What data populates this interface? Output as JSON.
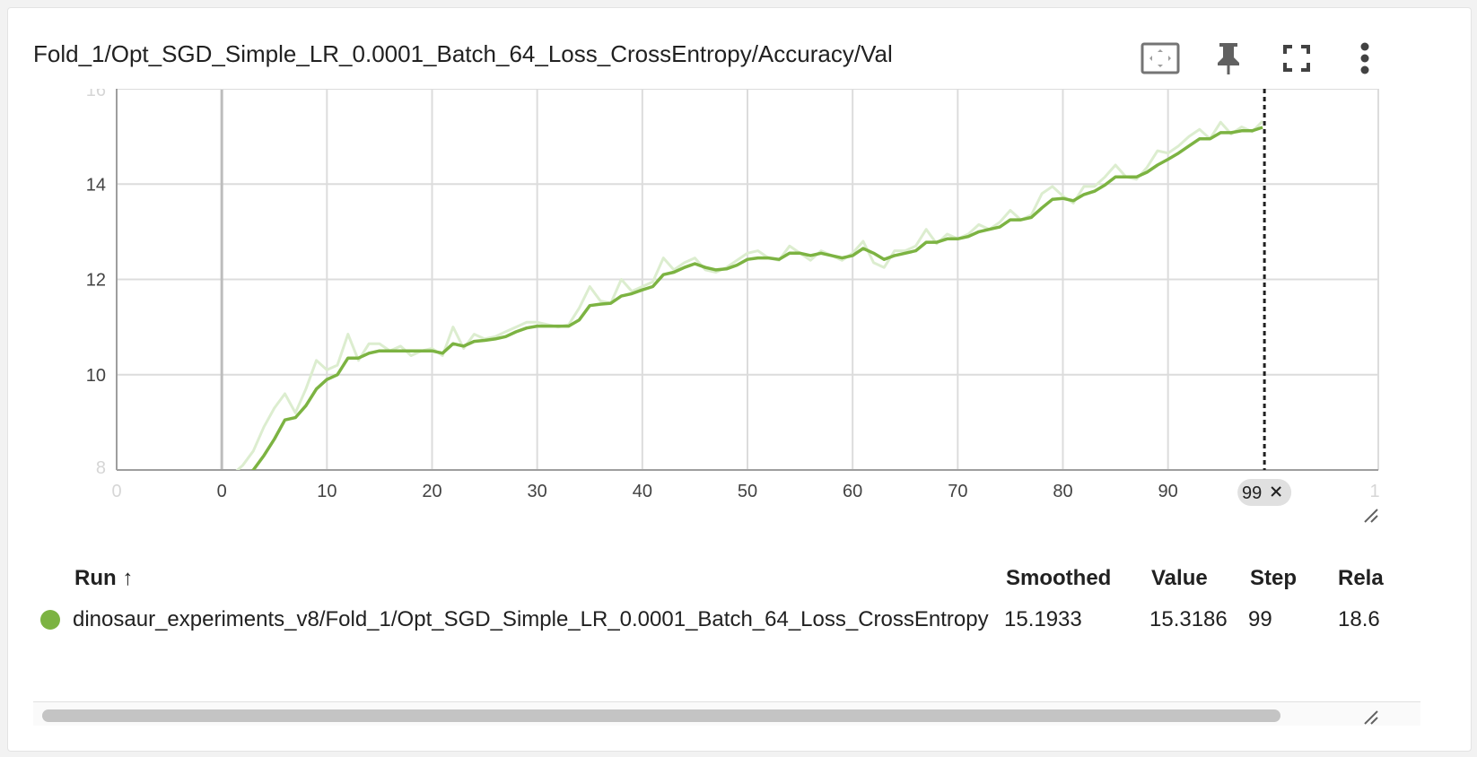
{
  "card": {
    "title": "Fold_1/Opt_SGD_Simple_LR_0.0001_Batch_64_Loss_CrossEntropy/Accuracy/Val",
    "toolbar": [
      {
        "name": "fit-domain-icon"
      },
      {
        "name": "pin-icon"
      },
      {
        "name": "fullscreen-icon"
      },
      {
        "name": "more-vertical-icon"
      }
    ]
  },
  "chart_data": {
    "type": "line",
    "title": "",
    "xlabel": "",
    "ylabel": "",
    "xlim": [
      -10,
      110
    ],
    "ylim": [
      8,
      16
    ],
    "x_ticks": [
      0,
      10,
      20,
      30,
      40,
      50,
      60,
      70,
      80,
      90
    ],
    "x_tick_labels": [
      "0",
      "10",
      "20",
      "30",
      "40",
      "50",
      "60",
      "70",
      "80",
      "90"
    ],
    "x_edge_labels": [
      "0",
      "1"
    ],
    "y_ticks": [
      10,
      12,
      14
    ],
    "y_tick_labels": [
      "10",
      "12",
      "14"
    ],
    "y_edge_labels": [
      "16",
      "8"
    ],
    "grid": true,
    "cursor": {
      "step": 99,
      "label": "99"
    },
    "series": [
      {
        "role": "raw",
        "color": "#dcedcf",
        "x": [
          0,
          1,
          2,
          3,
          4,
          5,
          6,
          7,
          8,
          9,
          10,
          11,
          12,
          13,
          14,
          15,
          16,
          17,
          18,
          19,
          20,
          21,
          22,
          23,
          24,
          25,
          26,
          27,
          28,
          29,
          30,
          31,
          32,
          33,
          34,
          35,
          36,
          37,
          38,
          39,
          40,
          41,
          42,
          43,
          44,
          45,
          46,
          47,
          48,
          49,
          50,
          51,
          52,
          53,
          54,
          55,
          56,
          57,
          58,
          59,
          60,
          61,
          62,
          63,
          64,
          65,
          66,
          67,
          68,
          69,
          70,
          71,
          72,
          73,
          74,
          75,
          76,
          77,
          78,
          79,
          80,
          81,
          82,
          83,
          84,
          85,
          86,
          87,
          88,
          89,
          90,
          91,
          92,
          93,
          94,
          95,
          96,
          97,
          98,
          99
        ],
        "y": [
          7.6,
          7.9,
          8.1,
          8.4,
          8.9,
          9.3,
          9.6,
          9.2,
          9.7,
          10.3,
          10.1,
          10.2,
          10.85,
          10.3,
          10.65,
          10.65,
          10.5,
          10.6,
          10.4,
          10.5,
          10.55,
          10.4,
          11.0,
          10.55,
          10.85,
          10.75,
          10.8,
          10.9,
          11.0,
          11.1,
          11.1,
          11.05,
          11.0,
          11.05,
          11.4,
          11.85,
          11.55,
          11.5,
          12.0,
          11.75,
          11.85,
          11.95,
          12.45,
          12.2,
          12.35,
          12.45,
          12.2,
          12.15,
          12.25,
          12.4,
          12.55,
          12.6,
          12.45,
          12.4,
          12.7,
          12.55,
          12.4,
          12.6,
          12.5,
          12.4,
          12.55,
          12.8,
          12.35,
          12.25,
          12.6,
          12.6,
          12.7,
          13.05,
          12.75,
          12.95,
          12.85,
          12.95,
          13.15,
          13.05,
          13.2,
          13.45,
          13.25,
          13.35,
          13.8,
          13.95,
          13.75,
          13.6,
          13.95,
          13.95,
          14.15,
          14.4,
          14.15,
          14.1,
          14.35,
          14.7,
          14.65,
          14.8,
          15.0,
          15.15,
          14.95,
          15.3,
          15.05,
          15.2,
          15.1,
          15.32
        ]
      },
      {
        "role": "smoothed",
        "color": "#7cb342",
        "x": [
          0,
          1,
          2,
          3,
          4,
          5,
          6,
          7,
          8,
          9,
          10,
          11,
          12,
          13,
          14,
          15,
          16,
          17,
          18,
          19,
          20,
          21,
          22,
          23,
          24,
          25,
          26,
          27,
          28,
          29,
          30,
          31,
          32,
          33,
          34,
          35,
          36,
          37,
          38,
          39,
          40,
          41,
          42,
          43,
          44,
          45,
          46,
          47,
          48,
          49,
          50,
          51,
          52,
          53,
          54,
          55,
          56,
          57,
          58,
          59,
          60,
          61,
          62,
          63,
          64,
          65,
          66,
          67,
          68,
          69,
          70,
          71,
          72,
          73,
          74,
          75,
          76,
          77,
          78,
          79,
          80,
          81,
          82,
          83,
          84,
          85,
          86,
          87,
          88,
          89,
          90,
          91,
          92,
          93,
          94,
          95,
          96,
          97,
          98,
          99
        ],
        "y": [
          7.4,
          7.6,
          7.8,
          8.0,
          8.3,
          8.65,
          9.05,
          9.1,
          9.35,
          9.7,
          9.9,
          10.0,
          10.35,
          10.35,
          10.45,
          10.5,
          10.5,
          10.5,
          10.5,
          10.5,
          10.5,
          10.45,
          10.65,
          10.6,
          10.7,
          10.72,
          10.75,
          10.8,
          10.9,
          10.98,
          11.02,
          11.02,
          11.02,
          11.02,
          11.15,
          11.45,
          11.48,
          11.5,
          11.65,
          11.7,
          11.78,
          11.85,
          12.1,
          12.15,
          12.25,
          12.33,
          12.25,
          12.2,
          12.22,
          12.3,
          12.42,
          12.45,
          12.45,
          12.42,
          12.55,
          12.55,
          12.5,
          12.55,
          12.5,
          12.45,
          12.5,
          12.65,
          12.55,
          12.42,
          12.5,
          12.55,
          12.6,
          12.78,
          12.78,
          12.85,
          12.85,
          12.9,
          13.0,
          13.05,
          13.1,
          13.25,
          13.25,
          13.3,
          13.5,
          13.68,
          13.7,
          13.65,
          13.78,
          13.85,
          13.98,
          14.15,
          14.15,
          14.15,
          14.25,
          14.4,
          14.52,
          14.65,
          14.8,
          14.95,
          14.95,
          15.08,
          15.08,
          15.12,
          15.12,
          15.19
        ]
      }
    ]
  },
  "table": {
    "headers": {
      "run": "Run ↑",
      "smoothed": "Smoothed",
      "value": "Value",
      "step": "Step",
      "relative": "Rela"
    },
    "rows": [
      {
        "color": "#7cb342",
        "run": "dinosaur_experiments_v8/Fold_1/Opt_SGD_Simple_LR_0.0001_Batch_64_Loss_CrossEntropy",
        "smoothed": "15.1933",
        "value": "15.3186",
        "step": "99",
        "relative": "18.6"
      }
    ]
  }
}
